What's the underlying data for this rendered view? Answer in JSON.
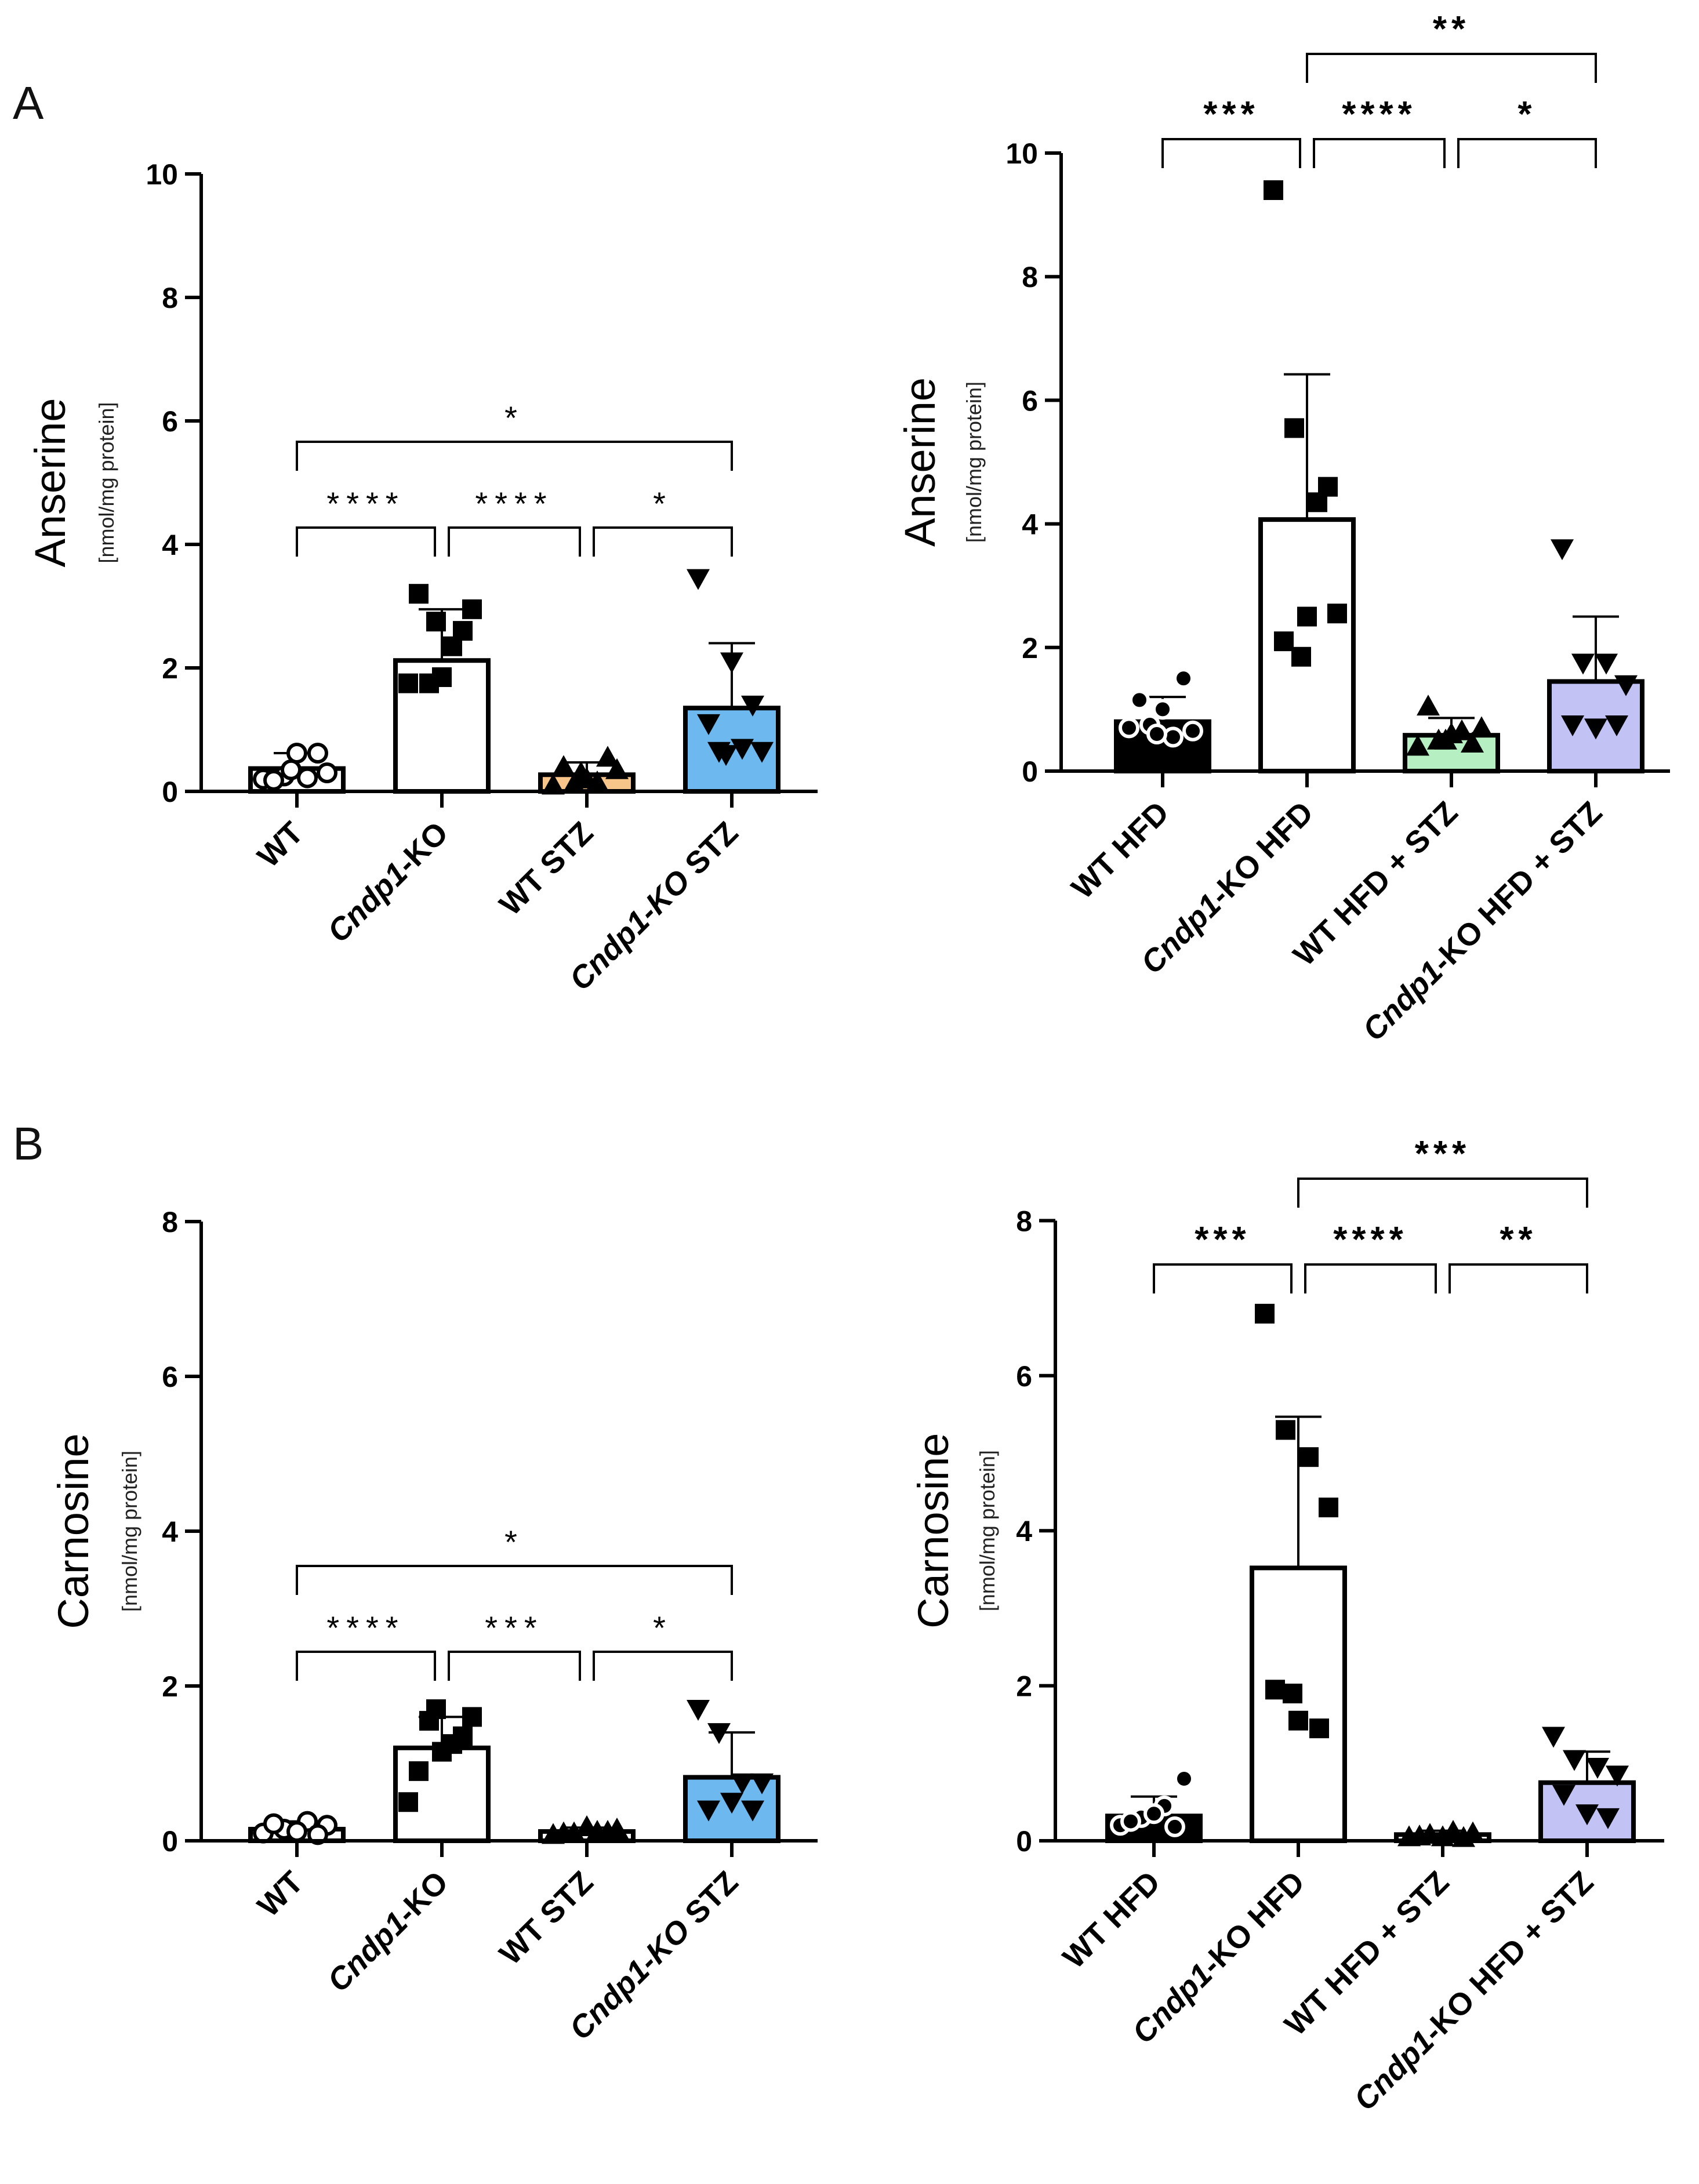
{
  "panels": [
    {
      "id": "A",
      "label": "A"
    },
    {
      "id": "B",
      "label": "B"
    }
  ],
  "chart_data": [
    {
      "type": "bar",
      "panel": "A",
      "ylabel": "Anserine",
      "ylabel_unit": "[nmol/mg protein]",
      "ylim": [
        0,
        10
      ],
      "yticks": [
        0,
        2,
        4,
        6,
        8,
        10
      ],
      "categories": [
        {
          "pre": "",
          "italic": "",
          "post": "WT"
        },
        {
          "pre": "",
          "italic": "Cndp1",
          "post": "-KO"
        },
        {
          "pre": "",
          "italic": "",
          "post": "WT STZ"
        },
        {
          "pre": "",
          "italic": "Cndp1-KO",
          "post": " STZ"
        }
      ],
      "means": [
        0.37,
        2.12,
        0.27,
        1.35
      ],
      "sd": [
        0.25,
        0.83,
        0.2,
        1.05
      ],
      "colors": [
        "#ffffff",
        "#ffffff",
        "#f7c48a",
        "#6eb8f0"
      ],
      "markers": [
        "circle-open",
        "square",
        "triangle-up",
        "triangle-down"
      ],
      "points": [
        [
          0.2,
          0.25,
          0.22,
          0.3,
          0.18,
          0.62,
          0.62,
          0.35
        ],
        [
          1.75,
          1.75,
          2.35,
          2.95,
          3.2,
          2.6,
          1.85,
          2.75
        ],
        [
          0.1,
          0.12,
          0.15,
          0.35,
          0.4,
          0.55,
          0.2,
          0.3
        ],
        [
          3.45,
          0.65,
          0.7,
          0.65,
          1.1,
          1.4,
          2.1,
          0.6
        ]
      ],
      "significance": [
        {
          "from": 0,
          "to": 1,
          "level": 1,
          "label": "****"
        },
        {
          "from": 1,
          "to": 2,
          "level": 1,
          "label": "****"
        },
        {
          "from": 2,
          "to": 3,
          "level": 1,
          "label": "*"
        },
        {
          "from": 0,
          "to": 3,
          "level": 2,
          "label": "*"
        }
      ]
    },
    {
      "type": "bar",
      "panel": "A",
      "ylabel": "Anserine",
      "ylabel_unit": "[nmol/mg protein]",
      "ylim": [
        0,
        10
      ],
      "yticks": [
        0,
        2,
        4,
        6,
        8,
        10
      ],
      "categories": [
        {
          "pre": "",
          "italic": "",
          "post": "WT HFD"
        },
        {
          "pre": "",
          "italic": "Cndp1",
          "post": "-KO HFD"
        },
        {
          "pre": "",
          "italic": "",
          "post": "WT HFD + STZ"
        },
        {
          "pre": "",
          "italic": "Cndp1",
          "post": "-KO HFD + STZ"
        }
      ],
      "means": [
        0.8,
        4.07,
        0.58,
        1.45
      ],
      "sd": [
        0.4,
        2.35,
        0.28,
        1.05
      ],
      "colors": [
        "#000000",
        "#ffffff",
        "#b6f0c2",
        "#c2c2f5"
      ],
      "markers": [
        "circle-open",
        "square",
        "triangle-up",
        "triangle-down"
      ],
      "points": [
        [
          0.7,
          0.75,
          0.55,
          0.65,
          1.15,
          1.5,
          1.0,
          0.6
        ],
        [
          9.4,
          5.55,
          4.35,
          2.55,
          2.1,
          4.6,
          2.5,
          1.85
        ],
        [
          0.4,
          0.5,
          0.65,
          0.7,
          1.05,
          0.45,
          0.6,
          0.5
        ],
        [
          3.6,
          1.75,
          1.75,
          1.4,
          0.75,
          0.75,
          0.7
        ]
      ],
      "significance": [
        {
          "from": 0,
          "to": 1,
          "level": 1,
          "label": "***"
        },
        {
          "from": 1,
          "to": 2,
          "level": 1,
          "label": "****"
        },
        {
          "from": 2,
          "to": 3,
          "level": 1,
          "label": "*"
        },
        {
          "from": 1,
          "to": 3,
          "level": 2,
          "label": "**"
        }
      ]
    },
    {
      "type": "bar",
      "panel": "B",
      "ylabel": "Carnosine",
      "ylabel_unit": "[nmol/mg protein]",
      "ylim": [
        0,
        8
      ],
      "yticks": [
        0,
        2,
        4,
        6,
        8
      ],
      "categories": [
        {
          "pre": "",
          "italic": "",
          "post": "WT"
        },
        {
          "pre": "",
          "italic": "Cndp1",
          "post": "-KO"
        },
        {
          "pre": "",
          "italic": "",
          "post": "WT STZ"
        },
        {
          "pre": "",
          "italic": "Cndp1-KO",
          "post": " STZ"
        }
      ],
      "means": [
        0.15,
        1.2,
        0.12,
        0.82
      ],
      "sd": [
        0.1,
        0.4,
        0.05,
        0.58
      ],
      "colors": [
        "#ffffff",
        "#ffffff",
        "#ffffff",
        "#6eb8f0"
      ],
      "markers": [
        "circle-open",
        "square",
        "triangle-up",
        "triangle-down"
      ],
      "points": [
        [
          0.1,
          0.15,
          0.25,
          0.2,
          0.22,
          0.08,
          0.12
        ],
        [
          0.5,
          1.55,
          1.25,
          1.6,
          0.9,
          1.35,
          1.15,
          1.7
        ],
        [
          0.08,
          0.1,
          0.12,
          0.15,
          0.1,
          0.12,
          0.18
        ],
        [
          1.7,
          1.4,
          0.75,
          0.75,
          0.4,
          0.4,
          0.5
        ]
      ],
      "significance": [
        {
          "from": 0,
          "to": 1,
          "level": 1,
          "label": "****"
        },
        {
          "from": 1,
          "to": 2,
          "level": 1,
          "label": "***"
        },
        {
          "from": 2,
          "to": 3,
          "level": 1,
          "label": "*"
        },
        {
          "from": 0,
          "to": 3,
          "level": 2,
          "label": "*"
        }
      ]
    },
    {
      "type": "bar",
      "panel": "B",
      "ylabel": "Carnosine",
      "ylabel_unit": "[nmol/mg protein]",
      "ylim": [
        0,
        8
      ],
      "yticks": [
        0,
        2,
        4,
        6,
        8
      ],
      "categories": [
        {
          "pre": "",
          "italic": "",
          "post": "WT HFD"
        },
        {
          "pre": "",
          "italic": "Cndp1",
          "post": "-KO HFD"
        },
        {
          "pre": "",
          "italic": "",
          "post": "WT HFD + STZ"
        },
        {
          "pre": "",
          "italic": "Cndp1",
          "post": "-KO HFD + STZ"
        }
      ],
      "means": [
        0.32,
        3.52,
        0.08,
        0.75
      ],
      "sd": [
        0.25,
        1.95,
        0.05,
        0.4
      ],
      "colors": [
        "#000000",
        "#ffffff",
        "#ffffff",
        "#c2c2f5"
      ],
      "markers": [
        "circle-open",
        "square",
        "triangle-up",
        "triangle-down"
      ],
      "points": [
        [
          0.2,
          0.3,
          0.45,
          0.8,
          0.25,
          0.18,
          0.35
        ],
        [
          6.8,
          5.3,
          4.95,
          4.3,
          1.95,
          1.45,
          1.55,
          1.9
        ],
        [
          0.05,
          0.08,
          0.12,
          0.1,
          0.06,
          0.04,
          0.05
        ],
        [
          1.35,
          1.05,
          0.95,
          0.85,
          0.6,
          0.3,
          0.35
        ]
      ],
      "significance": [
        {
          "from": 0,
          "to": 1,
          "level": 1,
          "label": "***"
        },
        {
          "from": 1,
          "to": 2,
          "level": 1,
          "label": "****"
        },
        {
          "from": 2,
          "to": 3,
          "level": 1,
          "label": "**"
        },
        {
          "from": 1,
          "to": 3,
          "level": 2,
          "label": "***"
        }
      ]
    }
  ]
}
